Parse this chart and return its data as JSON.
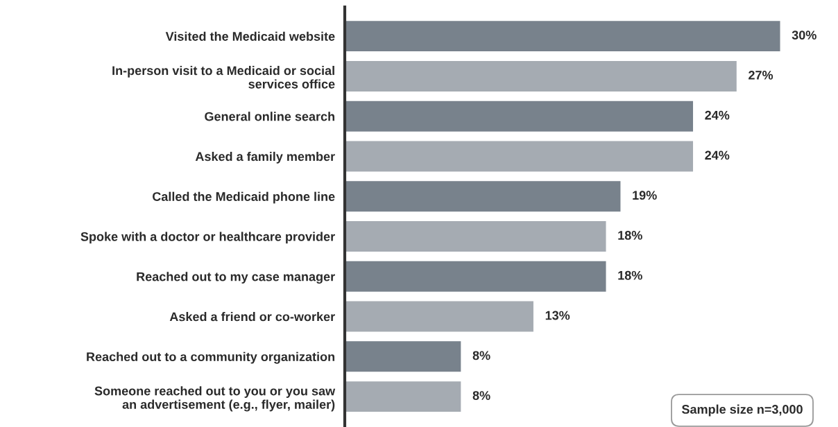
{
  "chart_data": {
    "type": "bar",
    "orientation": "horizontal",
    "categories": [
      "Visited the Medicaid website",
      "In-person visit to a Medicaid or social\nservices office",
      "General online search",
      "Asked a family member",
      "Called the Medicaid phone line",
      "Spoke with a doctor or healthcare provider",
      "Reached out to my case manager",
      "Asked a friend or co-worker",
      "Reached out to a community organization",
      "Someone reached out to you or you saw\nan advertisement (e.g., flyer, mailer)"
    ],
    "values": [
      30,
      27,
      24,
      24,
      19,
      18,
      18,
      13,
      8,
      8
    ],
    "colors": [
      "#78828c",
      "#a5abb2",
      "#78828c",
      "#a5abb2",
      "#78828c",
      "#a5abb2",
      "#78828c",
      "#a5abb2",
      "#78828c",
      "#a5abb2"
    ],
    "value_labels": [
      "30%",
      "27%",
      "24%",
      "24%",
      "19%",
      "18%",
      "18%",
      "13%",
      "8%",
      "8%"
    ],
    "tick_labels": "y",
    "grid": false,
    "legend": false,
    "annotations": [
      "Sample size n=3,000"
    ]
  }
}
